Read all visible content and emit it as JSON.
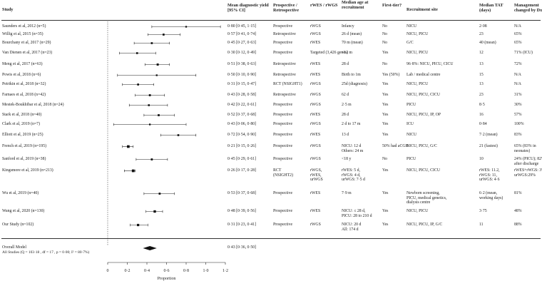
{
  "headers": {
    "study": "Study",
    "yield": "Mean diagnostic yield [95% CI]",
    "design": "Prospective / Retrospective",
    "method": "rWES / rWGS",
    "age": "Median age at recruitment",
    "first_tier": "First-tier?",
    "site": "Recruitment site",
    "tat": "Median TAT (days)",
    "mgmt": "Management changed by Dx"
  },
  "rows": [
    {
      "study": "Saunders et al, 2012 (n=5)",
      "yield": "0·80 [0·45, 1·15]",
      "design": "Prospective",
      "method": "rWGS",
      "age": "Infancy",
      "first": "No",
      "site": "NICU",
      "tat": "2·08",
      "mgmt": "N/A"
    },
    {
      "study": "Willig et al, 2015 (n=35)",
      "yield": "0·57 [0·41, 0·74]",
      "design": "Retrospective",
      "method": "rWGS",
      "age": "26 d (mean)",
      "first": "No",
      "site": "NICU, PICU",
      "tat": "23",
      "mgmt": "65%"
    },
    {
      "study": "Bourchany et al, 2017 (n=29)",
      "yield": "0·45 [0·27, 0·63]",
      "design": "Prospective",
      "method": "rWES",
      "age": "70 m (mean)",
      "first": "No",
      "site": "G/C",
      "tat": "40 (mean)",
      "mgmt": "65%"
    },
    {
      "study": "Van Dienen et al, 2017 (n=23)",
      "yield": "0·30 [0·12, 0·49]",
      "design": "Prospective",
      "method": "Targeted (3,426 genes)",
      "age": "<12 m",
      "first": "Yes",
      "site": "NICU, PICU",
      "tat": "12",
      "mgmt": "71% (ICU)"
    },
    {
      "study": "Meng et al, 2017 (n=63)",
      "yield": "0·51 [0·38, 0·63]",
      "design": "Retrospective",
      "method": "rWES",
      "age": "28 d",
      "first": "No",
      "site": "96·8%: NICU, PICU, CICU",
      "tat": "13",
      "mgmt": "72%"
    },
    {
      "study": "Powis et al, 2018 (n=6)",
      "yield": "0·50 [0·10, 0·90]",
      "design": "Retrospective",
      "method": "rWES",
      "age": "Birth to 1m",
      "first": "Yes (50%)",
      "site": "Lab / medical centre",
      "tat": "15",
      "mgmt": "N/A"
    },
    {
      "study": "Petrikin et al, 2018 (n=32)",
      "yield": "0·31 [0·15, 0·47]",
      "design": "RCT (NSIGHT1)",
      "method": "rWGS",
      "age": "25d (diagnosis)",
      "first": "Yes",
      "site": "NICU, PICU",
      "tat": "13",
      "mgmt": "N/A"
    },
    {
      "study": "Farnaes et al, 2018 (n=42)",
      "yield": "0·43 [0·28, 0·58]",
      "design": "Retrospective",
      "method": "rWGS",
      "age": "62 d",
      "first": "Yes",
      "site": "NICU, PICU, CICU",
      "tat": "23",
      "mgmt": "31%"
    },
    {
      "study": "Mestek-Boukhibar et al, 2018 (n=24)",
      "yield": "0·42 [0·22, 0·61]",
      "design": "Prospective",
      "method": "rWGS",
      "age": "2·5 m",
      "first": "Yes",
      "site": "PICU",
      "tat": "8·5",
      "mgmt": "30%"
    },
    {
      "study": "Stark et al, 2018 (n=40)",
      "yield": "0·52 [0·37, 0·68]",
      "design": "Prospective",
      "method": "rWES",
      "age": "28 d",
      "first": "Yes",
      "site": "NICU, PICU, IP, OP",
      "tat": "16",
      "mgmt": "57%"
    },
    {
      "study": "Clark et al, 2019 (n=7)",
      "yield": "0·43 [0·06, 0·80]",
      "design": "Prospective",
      "method": "rWGS",
      "age": "2 d to 17 m",
      "first": "Yes",
      "site": "ICU",
      "tat": "0·84",
      "mgmt": "100%"
    },
    {
      "study": "Elliott et al, 2019 (n=25)",
      "yield": "0·72 [0·54, 0·90]",
      "design": "Prospective",
      "method": "rWES",
      "age": "13 d",
      "first": "Yes",
      "site": "NICU",
      "tat": "7·2 (mean)",
      "mgmt": "83%"
    },
    {
      "study": "French et al, 2019 (n=195)",
      "yield": "0·21 [0·15, 0·26]",
      "design": "Prospective",
      "method": "rWGS",
      "age": "NICU: 12 d\nOthers: 24 m",
      "first": "50% had aCGH",
      "site": "NICU, PICU, G/C",
      "tat": "21 (fastest)",
      "mgmt": "65% (83% in\nneonates)"
    },
    {
      "study": "Sanford et al, 2019 (n=38)",
      "yield": "0·45 [0·29, 0·61]",
      "design": "Prospective",
      "method": "rWGS",
      "age": "<18 y",
      "first": "No",
      "site": "PICU",
      "tat": "10",
      "mgmt": "24% (PICU); 82%\nafter discharge"
    },
    {
      "study": "Kingsmore et al, 2019 (n=213)",
      "yield": "0·26 [0·17, 0·28]",
      "design": "RCT\n(NSIGHT2)",
      "method": "rWGS,\nrWES,\nurWGS",
      "age": "rWES: 5 d,\nrWGS: 4 d,\nurWGS: 7·5 d",
      "first": "Yes",
      "site": "NICU, PICU, CICU",
      "tat": "rWES: 11.2,\nrWGS: 11,\nurWGS: 4·6",
      "mgmt": "rWES+rWGS: 3%,\nurWGS:29%"
    },
    {
      "study": "Wu et al, 2019 (n=40)",
      "yield": "0·53 [0·37, 0·68]",
      "design": "Prospective",
      "method": "rWES",
      "age": "7·9 m",
      "first": "Yes",
      "site": "Newborn screening,\nPICU, medical genetics,\ndialysis centre",
      "tat": "6·2 (mean,\nworking days)",
      "mgmt": "81%"
    },
    {
      "study": "Wang et al, 2020 (n=130)",
      "yield": "0·48 [0·39, 0·56]",
      "design": "Prospective",
      "method": "rWES",
      "age": "NICU: ≤ 28 d,\nPICU: 28 to 210 d",
      "first": "Yes",
      "site": "NICU, PICU",
      "tat": "3·75",
      "mgmt": "48%"
    },
    {
      "study": "Our Study (n=102)",
      "yield": "0·31 [0·23, 0·41]",
      "design": "Prospective",
      "method": "rWGS",
      "age": "NICU: 20 d\nAll: 174 d",
      "first": "Yes",
      "site": "NICU, PICU, IP, G/C",
      "tat": "11",
      "mgmt": "88%"
    }
  ],
  "overall": {
    "label": "Overall Model",
    "yield": "0·43 [0·36, 0·50]",
    "heterogeneity": "All Studies (Q = 103·18 , df = 17 , p = 0·00; I² = 80·7%)"
  },
  "axis": {
    "label": "Proportion",
    "ticks": [
      "0",
      "0·2",
      "0·4",
      "0·6",
      "0·8",
      "1·0",
      "1·2"
    ]
  },
  "chart_data": {
    "type": "forest",
    "xlabel": "Proportion",
    "xlim": [
      0,
      1.2
    ],
    "ticks": [
      0,
      0.2,
      0.4,
      0.6,
      0.8,
      1.0,
      1.2
    ],
    "estimates": [
      {
        "est": 0.8,
        "lo": 0.45,
        "hi": 1.15,
        "n": 5
      },
      {
        "est": 0.57,
        "lo": 0.41,
        "hi": 0.74,
        "n": 35
      },
      {
        "est": 0.45,
        "lo": 0.27,
        "hi": 0.63,
        "n": 29
      },
      {
        "est": 0.3,
        "lo": 0.12,
        "hi": 0.49,
        "n": 23
      },
      {
        "est": 0.51,
        "lo": 0.38,
        "hi": 0.63,
        "n": 63
      },
      {
        "est": 0.5,
        "lo": 0.1,
        "hi": 0.9,
        "n": 6
      },
      {
        "est": 0.31,
        "lo": 0.15,
        "hi": 0.47,
        "n": 32
      },
      {
        "est": 0.43,
        "lo": 0.28,
        "hi": 0.58,
        "n": 42
      },
      {
        "est": 0.42,
        "lo": 0.22,
        "hi": 0.61,
        "n": 24
      },
      {
        "est": 0.52,
        "lo": 0.37,
        "hi": 0.68,
        "n": 40
      },
      {
        "est": 0.43,
        "lo": 0.06,
        "hi": 0.8,
        "n": 7
      },
      {
        "est": 0.72,
        "lo": 0.54,
        "hi": 0.9,
        "n": 25
      },
      {
        "est": 0.21,
        "lo": 0.15,
        "hi": 0.26,
        "n": 195
      },
      {
        "est": 0.45,
        "lo": 0.29,
        "hi": 0.61,
        "n": 38
      },
      {
        "est": 0.26,
        "lo": 0.17,
        "hi": 0.28,
        "n": 213
      },
      {
        "est": 0.53,
        "lo": 0.37,
        "hi": 0.68,
        "n": 40
      },
      {
        "est": 0.48,
        "lo": 0.39,
        "hi": 0.56,
        "n": 130
      },
      {
        "est": 0.31,
        "lo": 0.23,
        "hi": 0.41,
        "n": 102
      }
    ],
    "overall": {
      "est": 0.43,
      "lo": 0.36,
      "hi": 0.5
    },
    "reference_line": 0
  }
}
